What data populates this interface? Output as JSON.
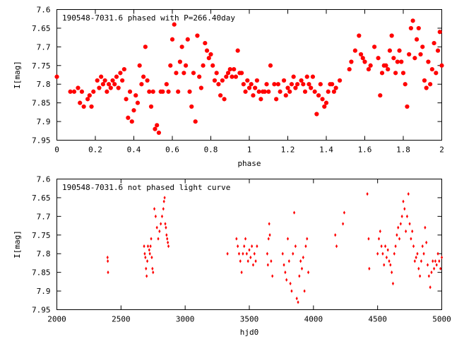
{
  "colors": {
    "points": "#ff0000",
    "axes": "#000000",
    "background": "#ffffff"
  },
  "chart_data": [
    {
      "type": "scatter",
      "title": "190548-7031.6 phased with P=266.40day",
      "xlabel": "phase",
      "ylabel": "I[mag]",
      "xlim": [
        0,
        2
      ],
      "ylim": [
        7.95,
        7.6
      ],
      "y_inverted": true,
      "grid": false,
      "x_ticks": [
        "0",
        "0.2",
        "0.4",
        "0.6",
        "0.8",
        "1",
        "1.2",
        "1.4",
        "1.6",
        "1.8",
        "2"
      ],
      "y_ticks": [
        "7.6",
        "7.65",
        "7.7",
        "7.75",
        "7.8",
        "7.85",
        "7.9",
        "7.95"
      ],
      "x_tick_values": [
        0,
        0.2,
        0.4,
        0.6,
        0.8,
        1,
        1.2,
        1.4,
        1.6,
        1.8,
        2
      ],
      "y_tick_values": [
        7.6,
        7.65,
        7.7,
        7.75,
        7.8,
        7.85,
        7.9,
        7.95
      ],
      "marker": "filled-circle",
      "points": [
        [
          0.0,
          7.78
        ],
        [
          0.07,
          7.82
        ],
        [
          0.09,
          7.82
        ],
        [
          0.11,
          7.81
        ],
        [
          0.12,
          7.85
        ],
        [
          0.13,
          7.82
        ],
        [
          0.14,
          7.86
        ],
        [
          0.16,
          7.84
        ],
        [
          0.17,
          7.83
        ],
        [
          0.18,
          7.86
        ],
        [
          0.19,
          7.82
        ],
        [
          0.21,
          7.79
        ],
        [
          0.22,
          7.81
        ],
        [
          0.23,
          7.78
        ],
        [
          0.24,
          7.8
        ],
        [
          0.25,
          7.79
        ],
        [
          0.26,
          7.82
        ],
        [
          0.27,
          7.8
        ],
        [
          0.28,
          7.81
        ],
        [
          0.29,
          7.79
        ],
        [
          0.3,
          7.8
        ],
        [
          0.31,
          7.78
        ],
        [
          0.32,
          7.81
        ],
        [
          0.33,
          7.77
        ],
        [
          0.34,
          7.79
        ],
        [
          0.35,
          7.76
        ],
        [
          0.36,
          7.84
        ],
        [
          0.37,
          7.89
        ],
        [
          0.38,
          7.82
        ],
        [
          0.39,
          7.9
        ],
        [
          0.4,
          7.87
        ],
        [
          0.41,
          7.83
        ],
        [
          0.42,
          7.85
        ],
        [
          0.43,
          7.75
        ],
        [
          0.44,
          7.8
        ],
        [
          0.45,
          7.78
        ],
        [
          0.46,
          7.7
        ],
        [
          0.47,
          7.79
        ],
        [
          0.48,
          7.82
        ],
        [
          0.49,
          7.86
        ],
        [
          0.5,
          7.82
        ],
        [
          0.51,
          7.92
        ],
        [
          0.52,
          7.91
        ],
        [
          0.53,
          7.93
        ],
        [
          0.54,
          7.82
        ],
        [
          0.55,
          7.82
        ],
        [
          0.57,
          7.8
        ],
        [
          0.58,
          7.82
        ],
        [
          0.59,
          7.75
        ],
        [
          0.6,
          7.68
        ],
        [
          0.61,
          7.64
        ],
        [
          0.62,
          7.77
        ],
        [
          0.63,
          7.82
        ],
        [
          0.64,
          7.74
        ],
        [
          0.65,
          7.7
        ],
        [
          0.66,
          7.77
        ],
        [
          0.67,
          7.75
        ],
        [
          0.68,
          7.68
        ],
        [
          0.69,
          7.82
        ],
        [
          0.7,
          7.86
        ],
        [
          0.71,
          7.77
        ],
        [
          0.72,
          7.9
        ],
        [
          0.73,
          7.67
        ],
        [
          0.74,
          7.78
        ],
        [
          0.75,
          7.81
        ],
        [
          0.76,
          7.75
        ],
        [
          0.77,
          7.69
        ],
        [
          0.78,
          7.71
        ],
        [
          0.79,
          7.73
        ],
        [
          0.8,
          7.72
        ],
        [
          0.81,
          7.75
        ],
        [
          0.82,
          7.79
        ],
        [
          0.83,
          7.77
        ],
        [
          0.84,
          7.8
        ],
        [
          0.85,
          7.83
        ],
        [
          0.86,
          7.79
        ],
        [
          0.87,
          7.84
        ],
        [
          0.88,
          7.78
        ],
        [
          0.89,
          7.77
        ],
        [
          0.9,
          7.76
        ],
        [
          0.91,
          7.78
        ],
        [
          0.92,
          7.76
        ],
        [
          0.93,
          7.78
        ],
        [
          0.94,
          7.71
        ],
        [
          0.95,
          7.77
        ],
        [
          0.96,
          7.77
        ],
        [
          0.97,
          7.8
        ],
        [
          0.98,
          7.82
        ],
        [
          0.99,
          7.79
        ],
        [
          1.0,
          7.81
        ],
        [
          1.01,
          7.8
        ],
        [
          1.02,
          7.83
        ],
        [
          1.03,
          7.81
        ],
        [
          1.04,
          7.79
        ],
        [
          1.05,
          7.82
        ],
        [
          1.06,
          7.84
        ],
        [
          1.07,
          7.82
        ],
        [
          1.08,
          7.82
        ],
        [
          1.09,
          7.8
        ],
        [
          1.1,
          7.82
        ],
        [
          1.11,
          7.75
        ],
        [
          1.13,
          7.8
        ],
        [
          1.14,
          7.84
        ],
        [
          1.15,
          7.8
        ],
        [
          1.16,
          7.82
        ],
        [
          1.18,
          7.79
        ],
        [
          1.19,
          7.83
        ],
        [
          1.2,
          7.81
        ],
        [
          1.21,
          7.82
        ],
        [
          1.22,
          7.8
        ],
        [
          1.23,
          7.78
        ],
        [
          1.24,
          7.81
        ],
        [
          1.25,
          7.8
        ],
        [
          1.27,
          7.79
        ],
        [
          1.28,
          7.8
        ],
        [
          1.29,
          7.82
        ],
        [
          1.3,
          7.78
        ],
        [
          1.31,
          7.8
        ],
        [
          1.32,
          7.81
        ],
        [
          1.33,
          7.78
        ],
        [
          1.34,
          7.82
        ],
        [
          1.35,
          7.88
        ],
        [
          1.36,
          7.83
        ],
        [
          1.37,
          7.8
        ],
        [
          1.38,
          7.84
        ],
        [
          1.39,
          7.86
        ],
        [
          1.4,
          7.85
        ],
        [
          1.41,
          7.82
        ],
        [
          1.42,
          7.8
        ],
        [
          1.43,
          7.8
        ],
        [
          1.44,
          7.82
        ],
        [
          1.45,
          7.81
        ],
        [
          1.47,
          7.79
        ],
        [
          1.52,
          7.76
        ],
        [
          1.53,
          7.74
        ],
        [
          1.55,
          7.71
        ],
        [
          1.57,
          7.67
        ],
        [
          1.58,
          7.72
        ],
        [
          1.59,
          7.73
        ],
        [
          1.6,
          7.74
        ],
        [
          1.62,
          7.76
        ],
        [
          1.63,
          7.75
        ],
        [
          1.65,
          7.7
        ],
        [
          1.67,
          7.73
        ],
        [
          1.68,
          7.83
        ],
        [
          1.69,
          7.77
        ],
        [
          1.7,
          7.75
        ],
        [
          1.71,
          7.75
        ],
        [
          1.72,
          7.76
        ],
        [
          1.73,
          7.71
        ],
        [
          1.74,
          7.67
        ],
        [
          1.75,
          7.73
        ],
        [
          1.76,
          7.77
        ],
        [
          1.77,
          7.74
        ],
        [
          1.78,
          7.71
        ],
        [
          1.79,
          7.74
        ],
        [
          1.8,
          7.77
        ],
        [
          1.81,
          7.8
        ],
        [
          1.82,
          7.86
        ],
        [
          1.83,
          7.72
        ],
        [
          1.84,
          7.65
        ],
        [
          1.85,
          7.63
        ],
        [
          1.86,
          7.73
        ],
        [
          1.87,
          7.68
        ],
        [
          1.88,
          7.65
        ],
        [
          1.89,
          7.72
        ],
        [
          1.9,
          7.7
        ],
        [
          1.91,
          7.79
        ],
        [
          1.92,
          7.81
        ],
        [
          1.93,
          7.74
        ],
        [
          1.94,
          7.8
        ],
        [
          1.95,
          7.76
        ],
        [
          1.96,
          7.69
        ],
        [
          1.97,
          7.77
        ],
        [
          1.98,
          7.71
        ],
        [
          1.99,
          7.66
        ],
        [
          2.0,
          7.75
        ]
      ]
    },
    {
      "type": "scatter",
      "title": "190548-7031.6 not phased light curve",
      "xlabel": "hjd0",
      "ylabel": "I[mag]",
      "xlim": [
        2000,
        5000
      ],
      "ylim": [
        7.95,
        7.6
      ],
      "y_inverted": true,
      "grid": false,
      "x_ticks": [
        "2000",
        "2500",
        "3000",
        "3500",
        "4000",
        "4500",
        "5000"
      ],
      "y_ticks": [
        "7.6",
        "7.65",
        "7.7",
        "7.75",
        "7.8",
        "7.85",
        "7.9",
        "7.95"
      ],
      "x_tick_values": [
        2000,
        2500,
        3000,
        3500,
        4000,
        4500,
        5000
      ],
      "y_tick_values": [
        7.6,
        7.65,
        7.7,
        7.75,
        7.8,
        7.85,
        7.9,
        7.95
      ],
      "marker": "diamond",
      "points": [
        [
          2395,
          7.81
        ],
        [
          2397,
          7.82
        ],
        [
          2399,
          7.85
        ],
        [
          2680,
          7.78
        ],
        [
          2685,
          7.8
        ],
        [
          2690,
          7.81
        ],
        [
          2695,
          7.84
        ],
        [
          2700,
          7.86
        ],
        [
          2705,
          7.82
        ],
        [
          2710,
          7.78
        ],
        [
          2720,
          7.79
        ],
        [
          2725,
          7.8
        ],
        [
          2730,
          7.78
        ],
        [
          2735,
          7.76
        ],
        [
          2740,
          7.81
        ],
        [
          2745,
          7.84
        ],
        [
          2750,
          7.85
        ],
        [
          2760,
          7.68
        ],
        [
          2770,
          7.7
        ],
        [
          2780,
          7.73
        ],
        [
          2790,
          7.76
        ],
        [
          2800,
          7.74
        ],
        [
          2810,
          7.72
        ],
        [
          2820,
          7.7
        ],
        [
          2830,
          7.68
        ],
        [
          2835,
          7.66
        ],
        [
          2840,
          7.65
        ],
        [
          2845,
          7.72
        ],
        [
          2850,
          7.73
        ],
        [
          2855,
          7.75
        ],
        [
          2860,
          7.76
        ],
        [
          2865,
          7.77
        ],
        [
          2870,
          7.78
        ],
        [
          3330,
          7.8
        ],
        [
          3400,
          7.76
        ],
        [
          3410,
          7.78
        ],
        [
          3420,
          7.8
        ],
        [
          3430,
          7.82
        ],
        [
          3440,
          7.85
        ],
        [
          3450,
          7.8
        ],
        [
          3460,
          7.78
        ],
        [
          3470,
          7.76
        ],
        [
          3480,
          7.8
        ],
        [
          3490,
          7.82
        ],
        [
          3500,
          7.79
        ],
        [
          3510,
          7.81
        ],
        [
          3520,
          7.78
        ],
        [
          3530,
          7.83
        ],
        [
          3540,
          7.8
        ],
        [
          3550,
          7.82
        ],
        [
          3560,
          7.78
        ],
        [
          3640,
          7.8
        ],
        [
          3645,
          7.83
        ],
        [
          3650,
          7.76
        ],
        [
          3655,
          7.72
        ],
        [
          3660,
          7.75
        ],
        [
          3670,
          7.82
        ],
        [
          3680,
          7.86
        ],
        [
          3760,
          7.8
        ],
        [
          3770,
          7.83
        ],
        [
          3780,
          7.85
        ],
        [
          3790,
          7.87
        ],
        [
          3800,
          7.76
        ],
        [
          3810,
          7.82
        ],
        [
          3820,
          7.88
        ],
        [
          3830,
          7.9
        ],
        [
          3840,
          7.8
        ],
        [
          3850,
          7.69
        ],
        [
          3860,
          7.78
        ],
        [
          3870,
          7.92
        ],
        [
          3880,
          7.93
        ],
        [
          3890,
          7.86
        ],
        [
          3900,
          7.82
        ],
        [
          3910,
          7.84
        ],
        [
          3920,
          7.81
        ],
        [
          3930,
          7.9
        ],
        [
          3940,
          7.78
        ],
        [
          3950,
          7.76
        ],
        [
          3960,
          7.85
        ],
        [
          4170,
          7.75
        ],
        [
          4180,
          7.78
        ],
        [
          4230,
          7.72
        ],
        [
          4240,
          7.69
        ],
        [
          4420,
          7.64
        ],
        [
          4430,
          7.76
        ],
        [
          4435,
          7.84
        ],
        [
          4500,
          7.8
        ],
        [
          4510,
          7.76
        ],
        [
          4520,
          7.74
        ],
        [
          4530,
          7.78
        ],
        [
          4540,
          7.8
        ],
        [
          4550,
          7.83
        ],
        [
          4560,
          7.78
        ],
        [
          4570,
          7.81
        ],
        [
          4580,
          7.79
        ],
        [
          4590,
          7.82
        ],
        [
          4600,
          7.83
        ],
        [
          4610,
          7.85
        ],
        [
          4620,
          7.88
        ],
        [
          4630,
          7.8
        ],
        [
          4640,
          7.78
        ],
        [
          4650,
          7.75
        ],
        [
          4660,
          7.73
        ],
        [
          4670,
          7.76
        ],
        [
          4680,
          7.72
        ],
        [
          4690,
          7.7
        ],
        [
          4700,
          7.66
        ],
        [
          4710,
          7.68
        ],
        [
          4720,
          7.74
        ],
        [
          4730,
          7.7
        ],
        [
          4740,
          7.64
        ],
        [
          4750,
          7.72
        ],
        [
          4760,
          7.76
        ],
        [
          4770,
          7.74
        ],
        [
          4780,
          7.78
        ],
        [
          4790,
          7.82
        ],
        [
          4800,
          7.81
        ],
        [
          4810,
          7.8
        ],
        [
          4820,
          7.84
        ],
        [
          4830,
          7.86
        ],
        [
          4840,
          7.82
        ],
        [
          4850,
          7.78
        ],
        [
          4860,
          7.8
        ],
        [
          4870,
          7.73
        ],
        [
          4880,
          7.77
        ],
        [
          4890,
          7.83
        ],
        [
          4900,
          7.86
        ],
        [
          4910,
          7.89
        ],
        [
          4920,
          7.85
        ],
        [
          4930,
          7.82
        ],
        [
          4940,
          7.84
        ],
        [
          4950,
          7.82
        ],
        [
          4960,
          7.83
        ],
        [
          4970,
          7.8
        ],
        [
          4980,
          7.82
        ],
        [
          4990,
          7.84
        ],
        [
          5000,
          7.81
        ]
      ]
    }
  ]
}
